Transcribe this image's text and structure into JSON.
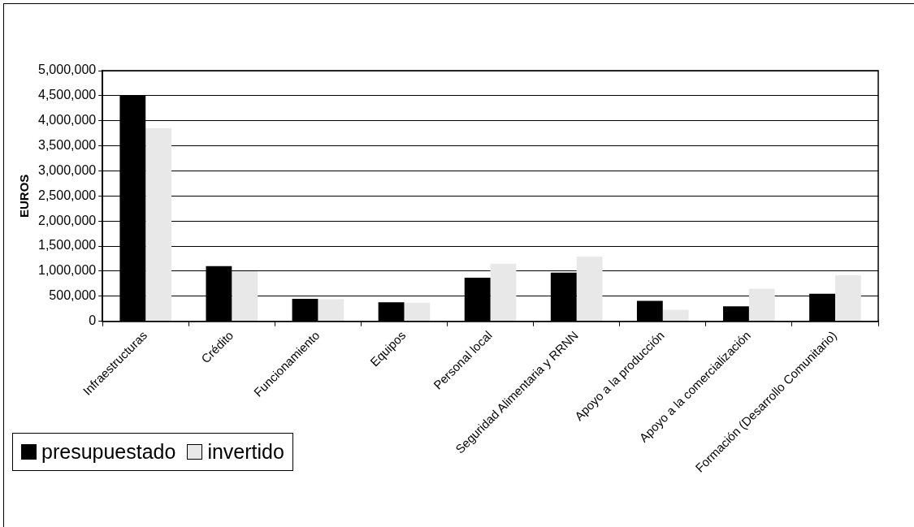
{
  "chart_data": {
    "type": "bar",
    "ylabel": "EUROS",
    "categories": [
      "Infraestructuras",
      "Crédito",
      "Funcionamiento",
      "Equipos",
      "Personal local",
      "Seguridad Alimentaria y RRNN",
      "Apoyo a la producción",
      "Apoyo a la comercialización",
      "Formación (Desarrollo Comunitario)"
    ],
    "series": [
      {
        "name": "presupuestado",
        "color": "#000000",
        "values": [
          4500000,
          1100000,
          450000,
          380000,
          870000,
          970000,
          410000,
          300000,
          550000
        ]
      },
      {
        "name": "invertido",
        "color": "#e8e8e8",
        "values": [
          3850000,
          1000000,
          440000,
          370000,
          1150000,
          1290000,
          230000,
          650000,
          920000
        ]
      }
    ],
    "ylim": [
      0,
      5000000
    ],
    "yticks": [
      0,
      {
        "value": 500000,
        "label": "500,000"
      },
      {
        "value": 1000000,
        "label": "1,000,000"
      },
      {
        "value": 1500000,
        "label": "1,500,000"
      },
      {
        "value": 2000000,
        "label": "2,000,000"
      },
      {
        "value": 2500000,
        "label": "2,500,000"
      },
      {
        "value": 3000000,
        "label": "3,000,000"
      },
      {
        "value": 3500000,
        "label": "3,500,000"
      },
      {
        "value": 4000000,
        "label": "4,000,000"
      },
      {
        "value": 4500000,
        "label": "4,500,000"
      },
      {
        "value": 5000000,
        "label": "5,000,000"
      }
    ],
    "grid": "y",
    "legend": "bottom left"
  }
}
